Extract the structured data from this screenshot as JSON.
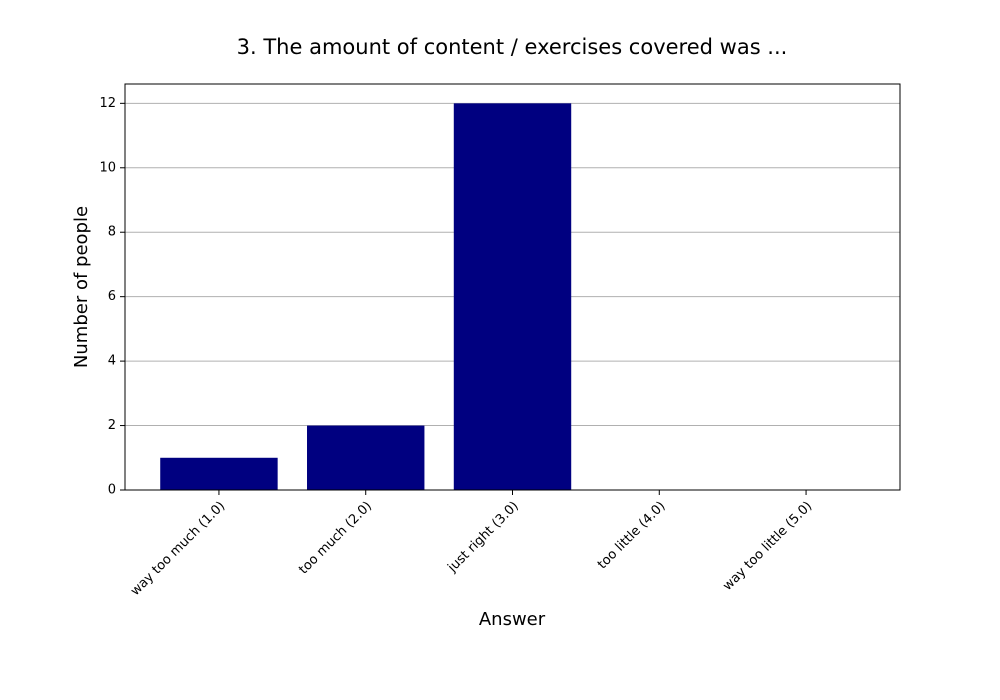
{
  "chart_data": {
    "type": "bar",
    "title": "3. The amount of content / exercises covered was ...",
    "x_label": "Answer",
    "y_label": "Number of people",
    "categories": [
      "way too much (1.0)",
      "too much (2.0)",
      "just right (3.0)",
      "too little (4.0)",
      "way too little (5.0)"
    ],
    "values": [
      1,
      2,
      12,
      0,
      0
    ],
    "color": "#000080",
    "ylim": [
      0,
      12.6
    ],
    "yticks": [
      0,
      2,
      4,
      6,
      8,
      10,
      12
    ],
    "grid": true
  }
}
